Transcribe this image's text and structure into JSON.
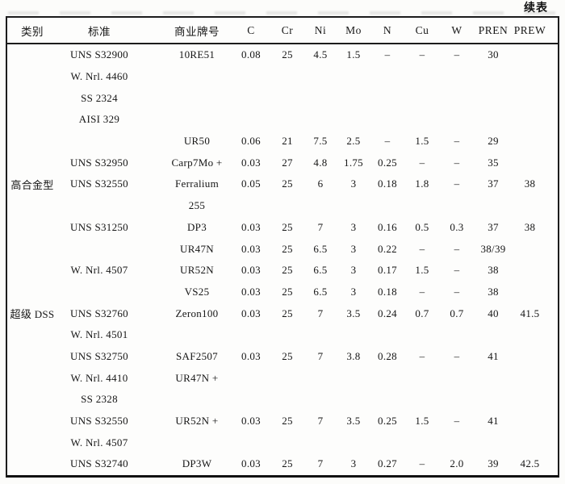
{
  "page": {
    "continued_label": "续表"
  },
  "table": {
    "columns": [
      "类别",
      "标准",
      "商业牌号",
      "C",
      "Cr",
      "Ni",
      "Mo",
      "N",
      "Cu",
      "W",
      "PREN",
      "PREW"
    ],
    "rows": [
      [
        "",
        "UNS S32900",
        "10RE51",
        "0.08",
        "25",
        "4.5",
        "1.5",
        "–",
        "–",
        "–",
        "30",
        ""
      ],
      [
        "",
        "W. Nrl. 4460",
        "",
        "",
        "",
        "",
        "",
        "",
        "",
        "",
        "",
        ""
      ],
      [
        "",
        "SS 2324",
        "",
        "",
        "",
        "",
        "",
        "",
        "",
        "",
        "",
        ""
      ],
      [
        "",
        "AISI 329",
        "",
        "",
        "",
        "",
        "",
        "",
        "",
        "",
        "",
        ""
      ],
      [
        "",
        "",
        "UR50",
        "0.06",
        "21",
        "7.5",
        "2.5",
        "–",
        "1.5",
        "–",
        "29",
        ""
      ],
      [
        "",
        "UNS S32950",
        "Carp7Mo +",
        "0.03",
        "27",
        "4.8",
        "1.75",
        "0.25",
        "–",
        "–",
        "35",
        ""
      ],
      [
        "高合金型",
        "UNS S32550",
        "Ferralium",
        "0.05",
        "25",
        "6",
        "3",
        "0.18",
        "1.8",
        "–",
        "37",
        "38"
      ],
      [
        "",
        "",
        "255",
        "",
        "",
        "",
        "",
        "",
        "",
        "",
        "",
        ""
      ],
      [
        "",
        "UNS S31250",
        "DP3",
        "0.03",
        "25",
        "7",
        "3",
        "0.16",
        "0.5",
        "0.3",
        "37",
        "38"
      ],
      [
        "",
        "",
        "UR47N",
        "0.03",
        "25",
        "6.5",
        "3",
        "0.22",
        "–",
        "–",
        "38/39",
        ""
      ],
      [
        "",
        "W. Nrl. 4507",
        "UR52N",
        "0.03",
        "25",
        "6.5",
        "3",
        "0.17",
        "1.5",
        "–",
        "38",
        ""
      ],
      [
        "",
        "",
        "VS25",
        "0.03",
        "25",
        "6.5",
        "3",
        "0.18",
        "–",
        "–",
        "38",
        ""
      ],
      [
        "超级 DSS",
        "UNS S32760",
        "Zeron100",
        "0.03",
        "25",
        "7",
        "3.5",
        "0.24",
        "0.7",
        "0.7",
        "40",
        "41.5"
      ],
      [
        "",
        "W. Nrl. 4501",
        "",
        "",
        "",
        "",
        "",
        "",
        "",
        "",
        "",
        ""
      ],
      [
        "",
        "UNS S32750",
        "SAF2507",
        "0.03",
        "25",
        "7",
        "3.8",
        "0.28",
        "–",
        "–",
        "41",
        ""
      ],
      [
        "",
        "W. Nrl. 4410",
        "UR47N +",
        "",
        "",
        "",
        "",
        "",
        "",
        "",
        "",
        ""
      ],
      [
        "",
        "SS 2328",
        "",
        "",
        "",
        "",
        "",
        "",
        "",
        "",
        "",
        ""
      ],
      [
        "",
        "UNS S32550",
        "UR52N +",
        "0.03",
        "25",
        "7",
        "3.5",
        "0.25",
        "1.5",
        "–",
        "41",
        ""
      ],
      [
        "",
        "W. Nrl. 4507",
        "",
        "",
        "",
        "",
        "",
        "",
        "",
        "",
        "",
        ""
      ],
      [
        "",
        "UNS S32740",
        "DP3W",
        "0.03",
        "25",
        "7",
        "3",
        "0.27",
        "–",
        "2.0",
        "39",
        "42.5"
      ]
    ]
  }
}
